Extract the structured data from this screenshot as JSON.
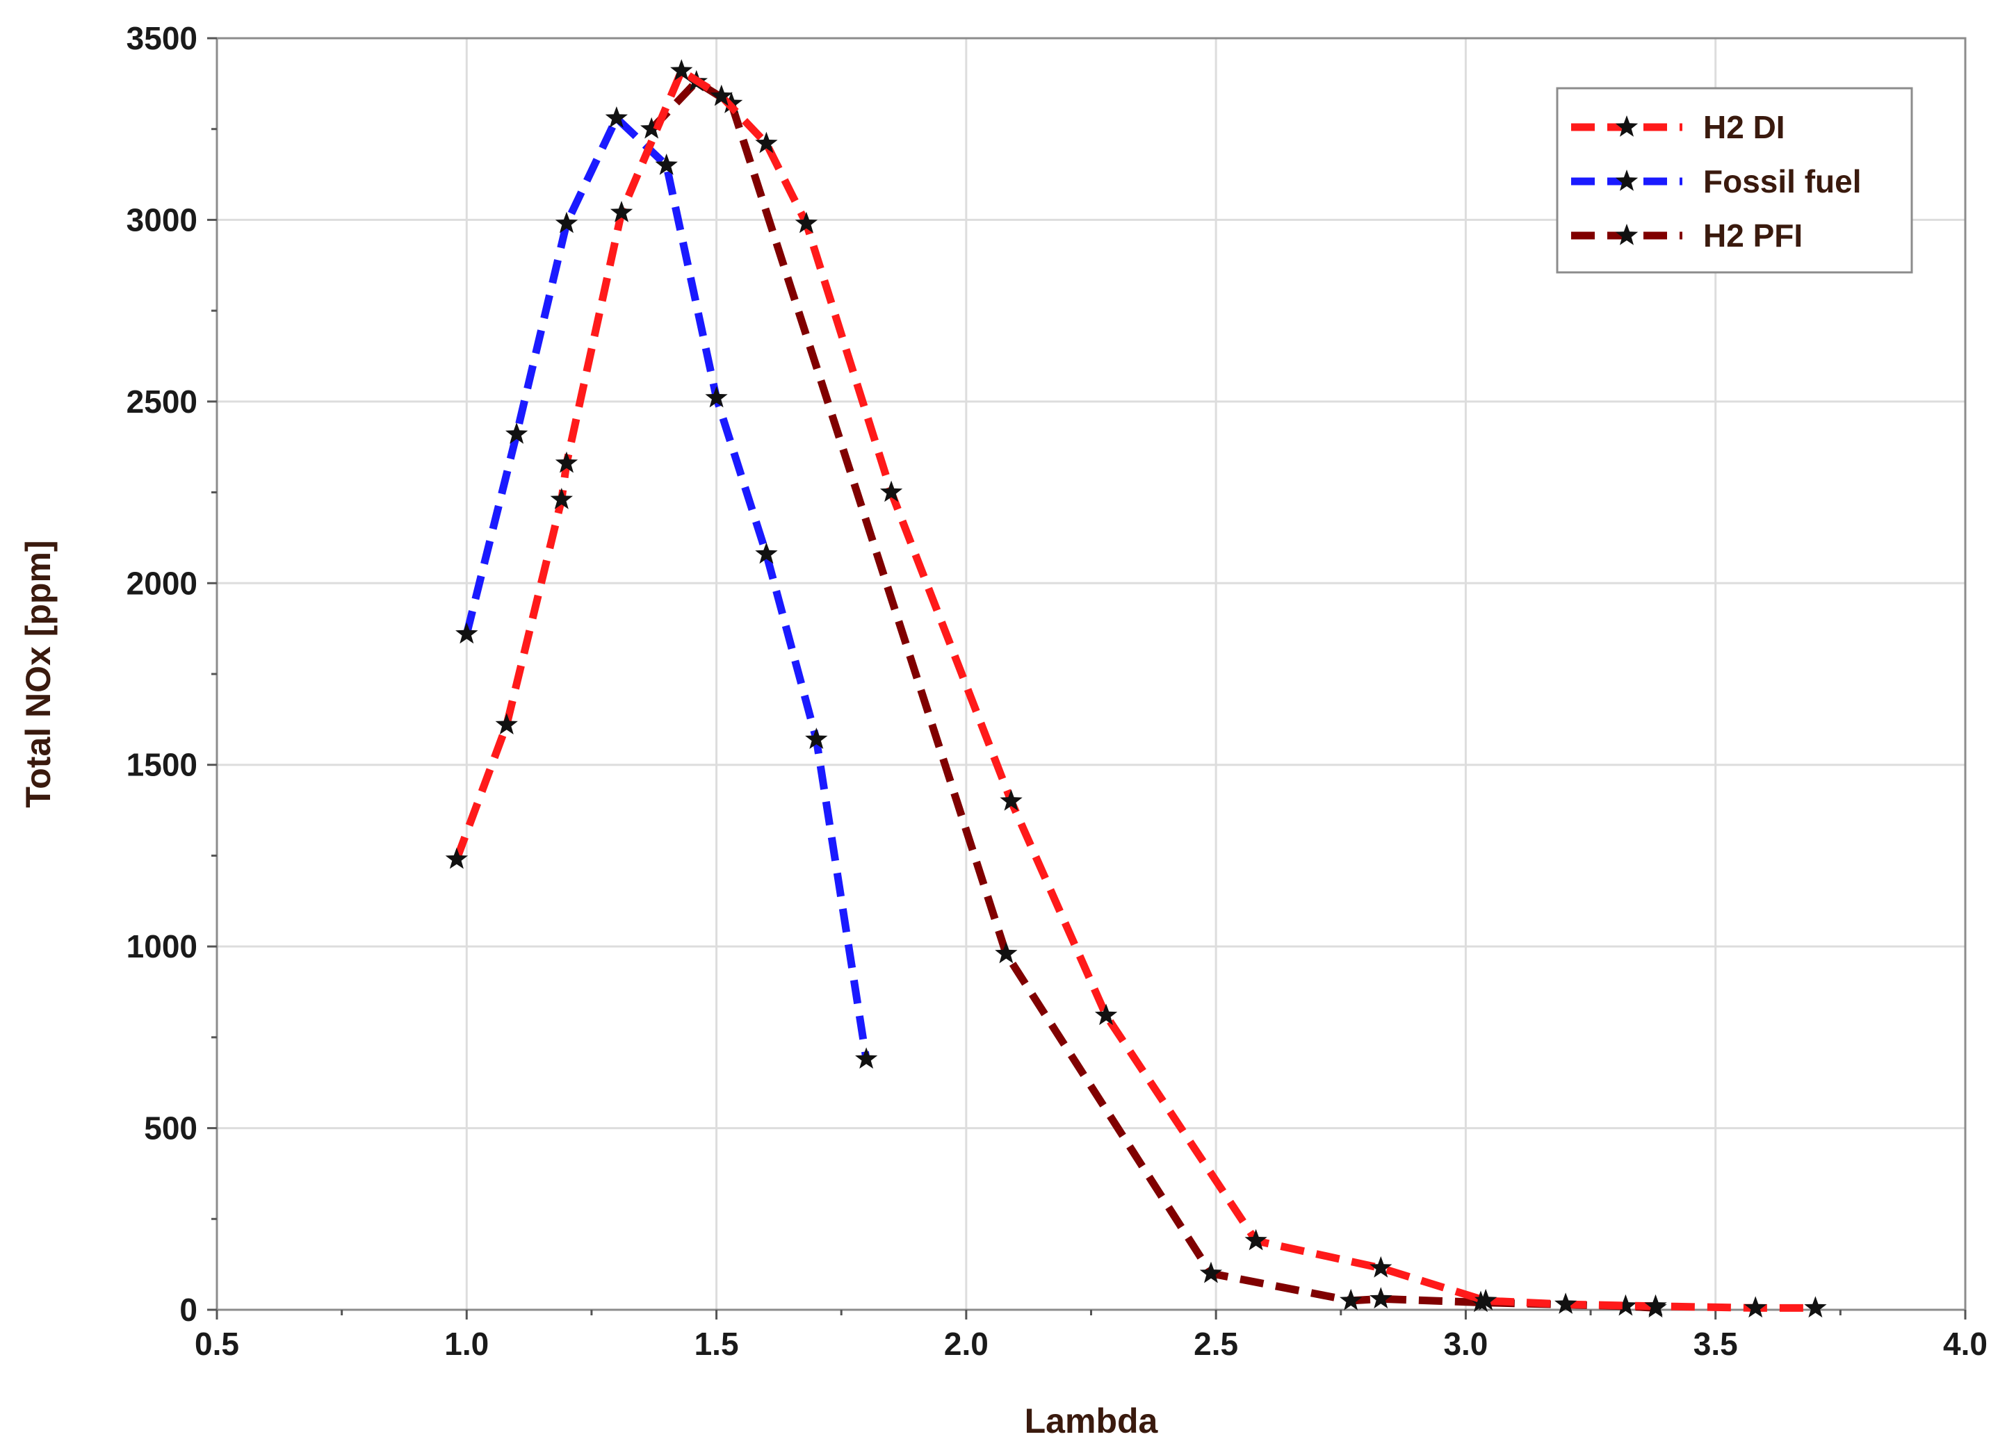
{
  "chart_data": {
    "type": "line",
    "title": "",
    "xlabel": "Lambda",
    "ylabel": "Total NOx [ppm]",
    "xlim": [
      0.5,
      4.0
    ],
    "ylim": [
      0,
      3500
    ],
    "xticks": [
      "0.5",
      "1.0",
      "1.5",
      "2.0",
      "2.5",
      "3.0",
      "3.5",
      "4.0"
    ],
    "yticks": [
      "0",
      "500",
      "1000",
      "1500",
      "2000",
      "2500",
      "3000",
      "3500"
    ],
    "grid": true,
    "legend_position": "top-right",
    "series": [
      {
        "name": "H2 DI",
        "color": "#ff1a1a",
        "marker": "star",
        "x": [
          0.98,
          1.08,
          1.19,
          1.2,
          1.31,
          1.43,
          1.51,
          1.6,
          1.68,
          1.85,
          2.09,
          2.28,
          2.58,
          2.83,
          3.04,
          3.2,
          3.38,
          3.58,
          3.7
        ],
        "y": [
          1240,
          1610,
          2230,
          2330,
          3020,
          3410,
          3340,
          3210,
          2990,
          2250,
          1400,
          810,
          190,
          115,
          25,
          15,
          10,
          5,
          5
        ]
      },
      {
        "name": "Fossil fuel",
        "color": "#1a1aff",
        "marker": "star",
        "x": [
          1.0,
          1.1,
          1.2,
          1.3,
          1.4,
          1.5,
          1.6,
          1.7,
          1.8
        ],
        "y": [
          1860,
          2410,
          2990,
          3280,
          3150,
          2510,
          2080,
          1570,
          690
        ]
      },
      {
        "name": "H2 PFI",
        "color": "#800000",
        "marker": "star",
        "x": [
          1.37,
          1.46,
          1.53,
          2.08,
          2.49,
          2.77,
          2.83,
          3.03,
          3.32,
          3.38
        ],
        "y": [
          3250,
          3380,
          3320,
          980,
          100,
          25,
          30,
          20,
          10,
          5
        ]
      }
    ]
  }
}
